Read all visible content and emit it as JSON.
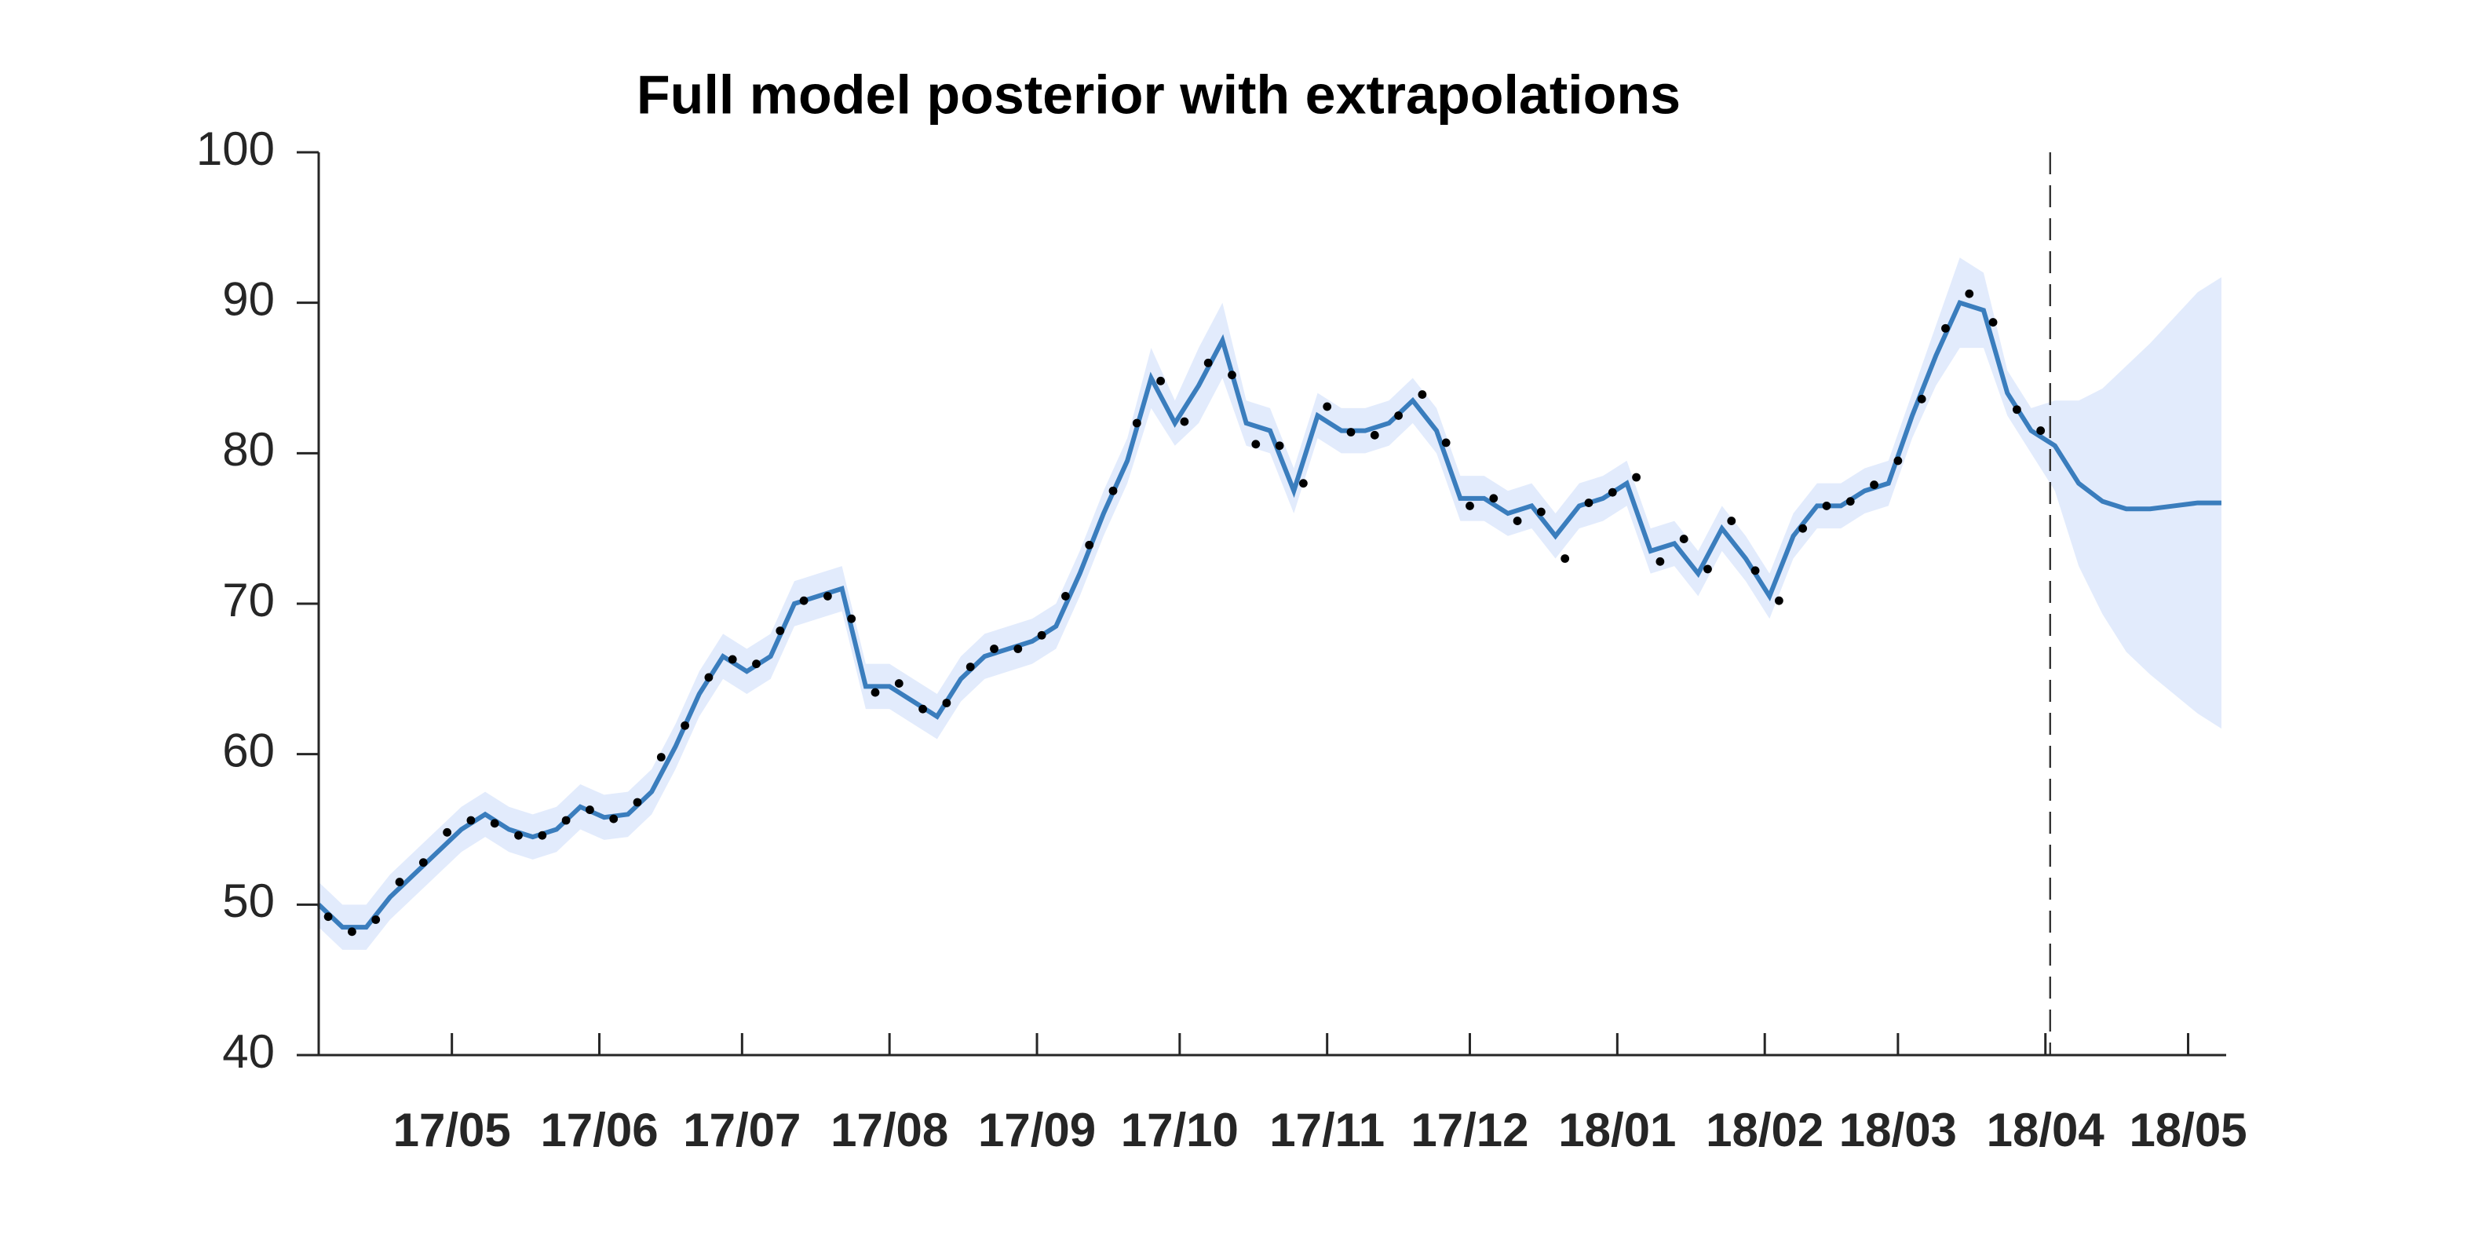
{
  "chart_data": {
    "type": "line",
    "title": "Full model posterior with extrapolations",
    "xlim": [
      0,
      401
    ],
    "ylim": [
      40,
      100
    ],
    "yticks": [
      40,
      50,
      60,
      70,
      80,
      90,
      100
    ],
    "xticks": [
      {
        "value": 28,
        "label": "17/05"
      },
      {
        "value": 59,
        "label": "17/06"
      },
      {
        "value": 89,
        "label": "17/07"
      },
      {
        "value": 120,
        "label": "17/08"
      },
      {
        "value": 151,
        "label": "17/09"
      },
      {
        "value": 181,
        "label": "17/10"
      },
      {
        "value": 212,
        "label": "17/11"
      },
      {
        "value": 242,
        "label": "17/12"
      },
      {
        "value": 273,
        "label": "18/01"
      },
      {
        "value": 304,
        "label": "18/02"
      },
      {
        "value": 332,
        "label": "18/03"
      },
      {
        "value": 363,
        "label": "18/04"
      },
      {
        "value": 393,
        "label": "18/05"
      }
    ],
    "divider_x": 364,
    "line": {
      "color": "#3a7dbd",
      "x": [
        0,
        5,
        10,
        15,
        20,
        25,
        30,
        35,
        40,
        45,
        50,
        55,
        60,
        65,
        70,
        75,
        80,
        85,
        90,
        95,
        100,
        105,
        110,
        115,
        120,
        125,
        130,
        135,
        140,
        145,
        150,
        155,
        160,
        165,
        170,
        175,
        180,
        185,
        190,
        195,
        200,
        205,
        210,
        215,
        220,
        225,
        230,
        235,
        240,
        245,
        250,
        255,
        260,
        265,
        270,
        275,
        280,
        285,
        290,
        295,
        300,
        305,
        310,
        315,
        320,
        325,
        330,
        335,
        340,
        345,
        350,
        355,
        360,
        365,
        370,
        375,
        380,
        385,
        390,
        395,
        400
      ],
      "values": [
        50,
        48.5,
        48.5,
        50.5,
        52,
        53.5,
        55,
        56,
        55,
        54.5,
        55,
        56.5,
        55.8,
        56,
        57.5,
        60.5,
        64,
        66.5,
        65.5,
        66.5,
        70,
        70.5,
        71,
        64.5,
        64.5,
        63.5,
        62.5,
        65,
        66.5,
        67,
        67.5,
        68.5,
        72,
        76,
        79.5,
        85,
        82,
        84.5,
        87.5,
        82,
        81.5,
        77.5,
        82.5,
        81.5,
        81.5,
        82,
        83.5,
        81.5,
        77,
        77,
        76,
        76.5,
        74.5,
        76.5,
        77,
        78,
        73.5,
        74,
        72,
        75,
        73,
        70.5,
        74.5,
        76.5,
        76.5,
        77.5,
        78,
        82.5,
        86.5,
        90,
        89.5,
        84,
        81.5,
        80.5,
        78,
        76.8,
        76.3,
        76.3,
        76.5,
        76.7,
        76.7
      ]
    },
    "band": {
      "color": "#e2ebfc",
      "upper": [
        51.5,
        50,
        50,
        52,
        53.5,
        55,
        56.5,
        57.5,
        56.5,
        56,
        56.5,
        58,
        57.3,
        57.5,
        59,
        62,
        65.5,
        68,
        67,
        68,
        71.5,
        72,
        72.5,
        66,
        66,
        65,
        64,
        66.5,
        68,
        68.5,
        69,
        70,
        73.5,
        77.5,
        81,
        87,
        83.5,
        87,
        90,
        83.5,
        83,
        79,
        84,
        83,
        83,
        83.5,
        85,
        83,
        78.5,
        78.5,
        77.5,
        78,
        76,
        78,
        78.5,
        79.5,
        75,
        75.5,
        73.5,
        76.5,
        74.5,
        72,
        76,
        78,
        78,
        79,
        79.5,
        84,
        88.5,
        93,
        92,
        85.5,
        83,
        83.5,
        83.5,
        84.3,
        85.8,
        87.3,
        89,
        90.7,
        91.7
      ],
      "lower": [
        48.5,
        47,
        47,
        49,
        50.5,
        52,
        53.5,
        54.5,
        53.5,
        53,
        53.5,
        55,
        54.3,
        54.5,
        56,
        59,
        62.5,
        65,
        64,
        65,
        68.5,
        69,
        69.5,
        63,
        63,
        62,
        61,
        63.5,
        65,
        65.5,
        66,
        67,
        70.5,
        74.5,
        78,
        83,
        80.5,
        82,
        85,
        80.5,
        80,
        76,
        81,
        80,
        80,
        80.5,
        82,
        80,
        75.5,
        75.5,
        74.5,
        75,
        73,
        75,
        75.5,
        76.5,
        72,
        72.5,
        70.5,
        73.5,
        71.5,
        69,
        73,
        75,
        75,
        76,
        76.5,
        81,
        84.5,
        87,
        87,
        82.5,
        80,
        77.5,
        72.5,
        69.3,
        66.8,
        65.3,
        64,
        62.7,
        61.7
      ]
    },
    "points": {
      "color": "#000000",
      "x": [
        2,
        7,
        12,
        17,
        22,
        27,
        32,
        37,
        42,
        47,
        52,
        57,
        62,
        67,
        72,
        77,
        82,
        87,
        92,
        97,
        102,
        107,
        112,
        117,
        122,
        127,
        132,
        137,
        142,
        147,
        152,
        157,
        162,
        167,
        172,
        177,
        182,
        187,
        192,
        197,
        202,
        207,
        212,
        217,
        222,
        227,
        232,
        237,
        242,
        247,
        252,
        257,
        262,
        267,
        272,
        277,
        282,
        287,
        292,
        297,
        302,
        307,
        312,
        317,
        322,
        327,
        332,
        337,
        342,
        347,
        352,
        357,
        362
      ],
      "values": [
        49.2,
        48.2,
        49.0,
        51.5,
        52.8,
        54.8,
        55.6,
        55.4,
        54.6,
        54.6,
        55.6,
        56.3,
        55.7,
        56.8,
        59.8,
        61.9,
        65.1,
        66.3,
        66.0,
        68.2,
        70.2,
        70.5,
        69.0,
        64.1,
        64.7,
        63.0,
        63.4,
        65.8,
        67.0,
        67.0,
        67.9,
        70.5,
        73.9,
        77.5,
        82.0,
        84.8,
        82.1,
        86.0,
        85.2,
        80.6,
        80.5,
        78.0,
        83.1,
        81.4,
        81.2,
        82.5,
        83.9,
        80.7,
        76.5,
        77.0,
        75.5,
        76.1,
        73.0,
        76.7,
        77.4,
        78.4,
        72.8,
        74.3,
        72.3,
        75.5,
        72.2,
        70.2,
        75.0,
        76.5,
        76.8,
        77.9,
        79.5,
        83.6,
        88.3,
        90.6,
        88.7,
        82.9,
        81.5
      ]
    }
  }
}
